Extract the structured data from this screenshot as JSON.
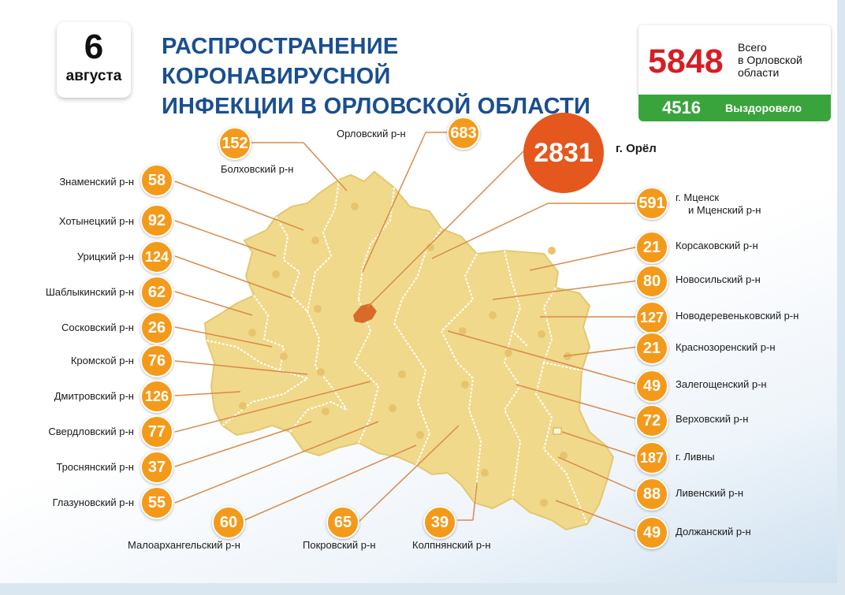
{
  "header": {
    "day": "6",
    "month": "августа",
    "title_line1": "РАСПРОСТРАНЕНИЕ КОРОНАВИРУСНОЙ",
    "title_line2": "ИНФЕКЦИИ В ОРЛОВСКОЙ ОБЛАСТИ"
  },
  "summary": {
    "total": "5848",
    "total_label_line1": "Всего",
    "total_label_line2": "в Орловской",
    "total_label_line3": "области",
    "recovered": "4516",
    "recovered_label": "Выздоровело"
  },
  "colors": {
    "title": "#1a4f8f",
    "total": "#d41f26",
    "recovered_bg": "#3aa43c",
    "badge": "#f49a1a",
    "city_badge": "#e4571d",
    "map_fill": "#f0d98a",
    "map_border": "#ffffff"
  },
  "city": {
    "name": "г. Орёл",
    "count": "2831"
  },
  "left_districts": [
    {
      "name": "Знаменский р-н",
      "count": "58"
    },
    {
      "name": "Хотынецкий р-н",
      "count": "92"
    },
    {
      "name": "Урицкий р-н",
      "count": "124"
    },
    {
      "name": "Шаблыкинский р-н",
      "count": "62"
    },
    {
      "name": "Сосковский р-н",
      "count": "26"
    },
    {
      "name": "Кромской р-н",
      "count": "76"
    },
    {
      "name": "Дмитровский р-н",
      "count": "126"
    },
    {
      "name": "Свердловский р-н",
      "count": "77"
    },
    {
      "name": "Троснянский р-н",
      "count": "37"
    },
    {
      "name": "Глазуновский р-н",
      "count": "55"
    }
  ],
  "right_districts": [
    {
      "name_line1": "г. Мценск",
      "name_line2": "и Мценский р-н",
      "count": "591"
    },
    {
      "name_line1": "Корсаковский р-н",
      "count": "21"
    },
    {
      "name_line1": "Новосильский р-н",
      "count": "80"
    },
    {
      "name_line1": "Новодеревеньковский р-н",
      "count": "127"
    },
    {
      "name_line1": "Краснозоренский р-н",
      "count": "21"
    },
    {
      "name_line1": "Залегощенский р-н",
      "count": "49"
    },
    {
      "name_line1": "Верховский р-н",
      "count": "72"
    },
    {
      "name_line1": "г. Ливны",
      "count": "187"
    },
    {
      "name_line1": "Ливенский р-н",
      "count": "88"
    },
    {
      "name_line1": "Должанский р-н",
      "count": "49"
    }
  ],
  "top_districts": [
    {
      "name": "Болховский р-н",
      "count": "152"
    },
    {
      "name": "Орловский р-н",
      "count": "683"
    }
  ],
  "bottom_districts": [
    {
      "name": "Малоархангельский р-н",
      "count": "60"
    },
    {
      "name": "Покровский р-н",
      "count": "65"
    },
    {
      "name": "Колпнянский р-н",
      "count": "39"
    }
  ]
}
